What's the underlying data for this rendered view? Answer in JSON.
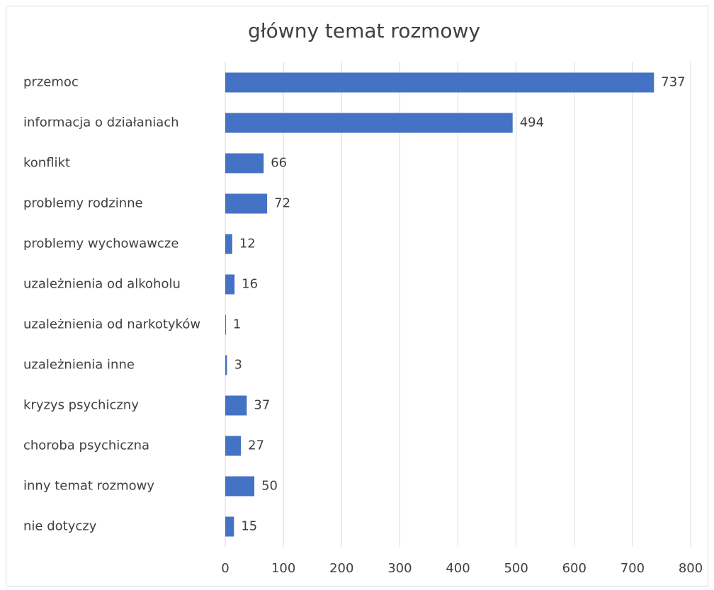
{
  "chart_data": {
    "type": "bar",
    "orientation": "horizontal",
    "title": "główny temat rozmowy",
    "categories": [
      "przemoc",
      "informacja o działaniach",
      "konflikt",
      "problemy rodzinne",
      "problemy wychowawcze",
      "uzależnienia od alkoholu",
      "uzależnienia od narkotyków",
      "uzależnienia inne",
      "kryzys psychiczny",
      "choroba psychiczna",
      "inny temat rozmowy",
      "nie dotyczy"
    ],
    "values": [
      737,
      494,
      66,
      72,
      12,
      16,
      1,
      3,
      37,
      27,
      50,
      15
    ],
    "color": "#4472c4",
    "xlim": [
      0,
      800
    ],
    "xticks": [
      0,
      100,
      200,
      300,
      400,
      500,
      600,
      700,
      800
    ],
    "grid": true
  }
}
